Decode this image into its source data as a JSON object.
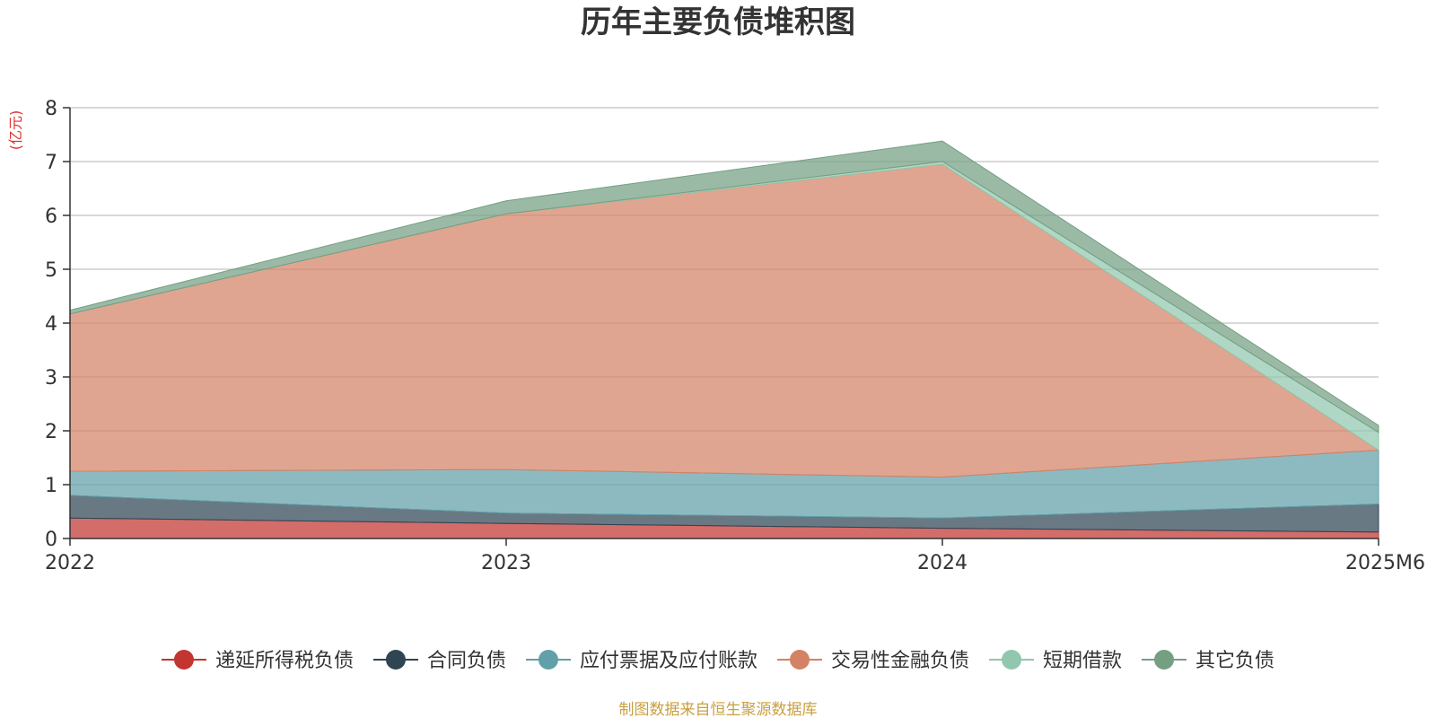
{
  "chart_data": {
    "type": "area",
    "stacked": true,
    "title": "历年主要负债堆积图",
    "unit_label": "(亿元)",
    "source_note": "制图数据来自恒生聚源数据库",
    "categories": [
      "2022",
      "2023",
      "2024",
      "2025M6"
    ],
    "ylim": [
      0,
      8
    ],
    "yticks": [
      0,
      1,
      2,
      3,
      4,
      5,
      6,
      7,
      8
    ],
    "grid": true,
    "legend_position": "bottom",
    "series": [
      {
        "name": "递延所得税负债",
        "color": "#c23531",
        "values": [
          0.38,
          0.28,
          0.19,
          0.12
        ]
      },
      {
        "name": "合同负债",
        "color": "#2f4554",
        "values": [
          0.42,
          0.19,
          0.19,
          0.52
        ]
      },
      {
        "name": "应付票据及应付账款",
        "color": "#61a0a8",
        "values": [
          0.45,
          0.81,
          0.76,
          1.0
        ]
      },
      {
        "name": "交易性金融负债",
        "color": "#d48265",
        "values": [
          2.92,
          4.75,
          5.81,
          0.0
        ]
      },
      {
        "name": "短期借款",
        "color": "#91c7ae",
        "values": [
          0.0,
          0.0,
          0.05,
          0.33
        ]
      },
      {
        "name": "其它负债",
        "color": "#749f83",
        "values": [
          0.07,
          0.24,
          0.38,
          0.13
        ]
      }
    ],
    "colors": {
      "unit": "#e03030",
      "source": "#c8a040",
      "grid": "#cccccc",
      "axis": "#333333"
    }
  }
}
